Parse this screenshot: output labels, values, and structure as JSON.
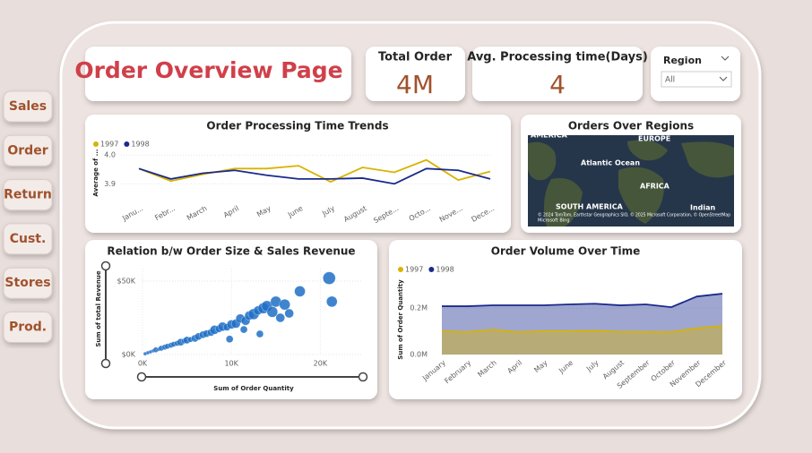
{
  "nav": [
    "Sales",
    "Order",
    "Return",
    "Cust.",
    "Stores",
    "Prod."
  ],
  "header": {
    "title": "Order Overview Page"
  },
  "kpis": [
    {
      "label": "Total Order",
      "value": "4M"
    },
    {
      "label": "Avg. Processing time(Days)",
      "value": 4
    }
  ],
  "slicer": {
    "label": "Region",
    "selection": "All"
  },
  "map": {
    "title": "Orders Over Regions",
    "labels": [
      "AMERICA",
      "EUROPE",
      "Atlantic Ocean",
      "AFRICA",
      "SOUTH AMERICA",
      "Indian"
    ],
    "attribution": "© 2024 TomTom, Earthstar Geographics SIO, © 2025 Microsoft Corporation, © OpenStreetMap",
    "logo": "Microsoft Bing"
  },
  "chart_data": [
    {
      "type": "line",
      "title": "Order Processing Time Trends",
      "y_label": "Average of ...",
      "categories": [
        "Janu...",
        "Febr...",
        "March",
        "April",
        "May",
        "June",
        "July",
        "August",
        "Septe...",
        "Octo...",
        "Nove...",
        "Dece..."
      ],
      "series": [
        {
          "name": "1997",
          "color": "#d9b300",
          "values": [
            3.953,
            3.91,
            3.933,
            3.953,
            3.953,
            3.963,
            3.907,
            3.957,
            3.94,
            3.983,
            3.913,
            3.943
          ]
        },
        {
          "name": "1998",
          "color": "#1a2a8c",
          "values": [
            3.953,
            3.917,
            3.937,
            3.947,
            3.93,
            3.917,
            3.917,
            3.92,
            3.9,
            3.953,
            3.947,
            3.917
          ]
        }
      ],
      "ylim": [
        3.87,
        4.01
      ],
      "yticks": [
        3.9,
        {
          "value": 4,
          "label": "4.0"
        }
      ]
    },
    {
      "type": "scatter",
      "title": "Relation b/w Order Size & Sales Revenue",
      "x_label": "Sum of Order Quantity",
      "y_label": "Sum of total Revenue",
      "color": "#1f6fc5",
      "x": [
        300,
        600,
        900,
        1200,
        1500,
        1800,
        2100,
        2500,
        2800,
        3200,
        3500,
        3900,
        4300,
        4700,
        5000,
        5400,
        5900,
        6300,
        6800,
        7200,
        7700,
        8100,
        8600,
        9000,
        9500,
        10000,
        10500,
        11000,
        11600,
        12000,
        12500,
        13000,
        13600,
        14000,
        14600,
        15000,
        16000,
        16500,
        17700,
        15500,
        21000,
        21300,
        13200,
        11400,
        9800
      ],
      "y": [
        500,
        1200,
        1800,
        2500,
        3200,
        3500,
        4300,
        5000,
        5600,
        6300,
        7000,
        7600,
        8400,
        9200,
        9800,
        10200,
        11000,
        12300,
        13500,
        14200,
        15000,
        16800,
        17500,
        19000,
        18600,
        20500,
        21000,
        24500,
        23000,
        26500,
        27500,
        30000,
        31500,
        33000,
        29000,
        36000,
        34000,
        28000,
        43000,
        25000,
        52000,
        36000,
        14000,
        17000,
        10500
      ],
      "sizes": [
        2,
        2,
        2,
        2,
        3,
        2,
        3,
        3,
        3,
        3,
        3,
        3,
        4,
        3,
        4,
        3,
        4,
        4,
        4,
        4,
        4,
        5,
        4,
        5,
        4,
        5,
        5,
        5,
        5,
        5,
        6,
        5,
        6,
        6,
        6,
        6,
        6,
        5,
        6,
        5,
        7,
        6,
        4,
        4,
        4
      ],
      "xlim": [
        0,
        24800
      ],
      "ylim": [
        0,
        58500
      ],
      "xticks": [
        {
          "value": 0,
          "label": "0K"
        },
        {
          "value": 10000,
          "label": "10K"
        },
        {
          "value": 20000,
          "label": "20K"
        }
      ],
      "yticks": [
        {
          "value": 0,
          "label": "$0K"
        },
        {
          "value": 50000,
          "label": "$50K"
        }
      ]
    },
    {
      "type": "area",
      "title": "Order Volume Over Time",
      "y_label": "Sum of Order Quantity",
      "categories": [
        "January",
        "February",
        "March",
        "April",
        "May",
        "June",
        "July",
        "August",
        "September",
        "October",
        "November",
        "December"
      ],
      "series": [
        {
          "name": "1997",
          "color": "#d9b300",
          "values": [
            100000,
            97000,
            107000,
            97000,
            100000,
            100000,
            102000,
            98000,
            98000,
            97000,
            113000,
            123000
          ]
        },
        {
          "name": "1998",
          "color": "#1a2a8c",
          "values": [
            208000,
            208000,
            212000,
            212000,
            212000,
            216000,
            219000,
            212000,
            216000,
            204000,
            250000,
            262000
          ]
        }
      ],
      "ylim": [
        0,
        270000
      ],
      "yticks": [
        {
          "value": 0,
          "label": "0.0M"
        },
        {
          "value": 200000,
          "label": "0.2M"
        }
      ]
    }
  ]
}
